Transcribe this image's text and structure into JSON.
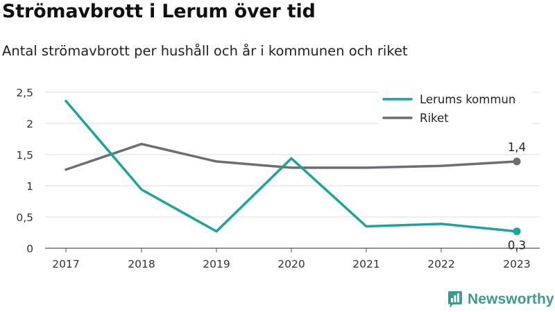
{
  "header": {
    "title": "Strömavbrott i Lerum över tid",
    "subtitle": "Antal strömavbrott per hushåll och år i kommunen och riket"
  },
  "brand": {
    "name": "Newsworthy",
    "icon": "newsworthy-logo-icon",
    "color": "#3d9a93"
  },
  "chart_data": {
    "type": "line",
    "title": "Strömavbrott i Lerum över tid",
    "subtitle": "Antal strömavbrott per hushåll och år i kommunen och riket",
    "x": [
      "2017",
      "2018",
      "2019",
      "2020",
      "2021",
      "2022",
      "2023"
    ],
    "ylim": [
      0,
      2.5
    ],
    "yticks": [
      {
        "value": 0,
        "label": "0"
      },
      {
        "value": 0.5,
        "label": "0,5"
      },
      {
        "value": 1,
        "label": "1"
      },
      {
        "value": 1.5,
        "label": "1,5"
      },
      {
        "value": 2,
        "label": "2"
      },
      {
        "value": 2.5,
        "label": "2,5"
      }
    ],
    "grid": true,
    "legend": "top-right",
    "series": [
      {
        "name": "Lerums kommun",
        "color": "#1ba39c",
        "values": [
          2.36,
          0.94,
          0.27,
          1.44,
          0.35,
          0.39,
          0.27
        ],
        "end_label": "0,3"
      },
      {
        "name": "Riket",
        "color": "#6d6d73",
        "values": [
          1.26,
          1.67,
          1.39,
          1.29,
          1.29,
          1.32,
          1.39
        ],
        "end_label": "1,4"
      }
    ]
  }
}
